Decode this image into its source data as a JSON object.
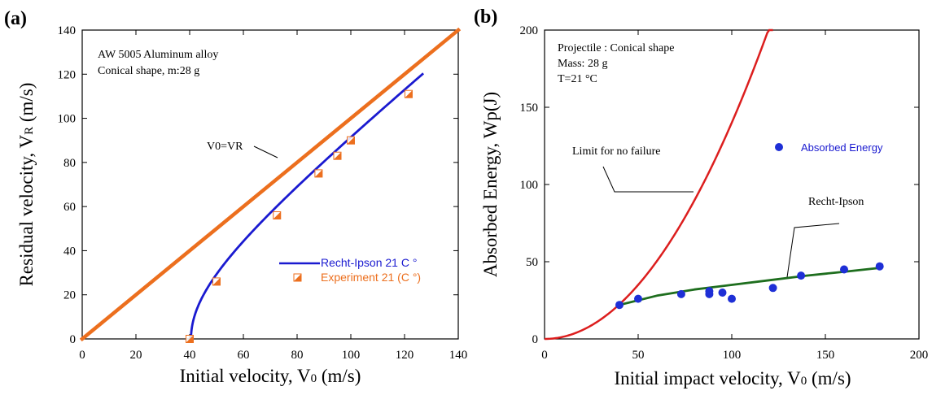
{
  "colors": {
    "orange": "#ec6f1e",
    "blue": "#1a1ad0",
    "red": "#dc1e1e",
    "green": "#1e6e1e",
    "dot": "#1e2fd6"
  },
  "chart_data": [
    {
      "type": "line",
      "panel_label": "(a)",
      "xlabel": "Initial velocity, V0 (m/s)",
      "ylabel": "Residual velocity, VR (m/s)",
      "xlim": [
        0,
        140
      ],
      "ylim": [
        0,
        140
      ],
      "x_ticks": [
        0,
        20,
        40,
        60,
        80,
        100,
        120,
        140
      ],
      "y_ticks": [
        0,
        20,
        40,
        60,
        80,
        100,
        120,
        140
      ],
      "annotations": [
        "AW 5005 Aluminum alloy",
        "Conical shape, m:28 g",
        "V0=VR"
      ],
      "series": [
        {
          "name": "V0=VR",
          "x": [
            0,
            140
          ],
          "y": [
            0,
            140
          ]
        },
        {
          "name": "Recht-Ipson 21 C °",
          "model": "recht_ipson",
          "ballistic_limit": 40.5,
          "x_range": [
            40.5,
            127
          ]
        },
        {
          "name": "Experiment 21 (C °)",
          "x": [
            40,
            50,
            72.5,
            88,
            95,
            100,
            121.5
          ],
          "y": [
            0,
            26,
            56,
            75,
            83,
            90,
            111
          ]
        }
      ]
    },
    {
      "type": "scatter",
      "panel_label": "(b)",
      "xlabel": "Initial impact velocity, V0 (m/s)",
      "ylabel": "Absorbed Energy, Wp(J)",
      "xlim": [
        0,
        200
      ],
      "ylim": [
        0,
        200
      ],
      "x_ticks": [
        0,
        50,
        100,
        150,
        200
      ],
      "y_ticks": [
        0,
        50,
        100,
        150,
        200
      ],
      "annotations": [
        "Projectile : Conical shape",
        "Mass: 28 g",
        "T=21 °C",
        "Limit for no failure",
        "Recht-Ipson"
      ],
      "legend": "Absorbed Energy",
      "series": [
        {
          "name": "Absorbed Energy",
          "x": [
            40,
            50,
            73,
            88,
            88,
            95,
            100,
            122,
            137,
            160,
            179
          ],
          "y": [
            22,
            26,
            29,
            29,
            31,
            30,
            26,
            33,
            41,
            45,
            47
          ]
        },
        {
          "name": "Limit for no failure",
          "model": "half_m_v2",
          "mass_kg": 0.028,
          "x_range": [
            0,
            122
          ]
        },
        {
          "name": "Recht-Ipson",
          "x": [
            40,
            60,
            80,
            100,
            120,
            140,
            160,
            179
          ],
          "y": [
            22,
            28,
            32,
            35,
            38,
            41,
            43.5,
            46
          ]
        }
      ]
    }
  ]
}
